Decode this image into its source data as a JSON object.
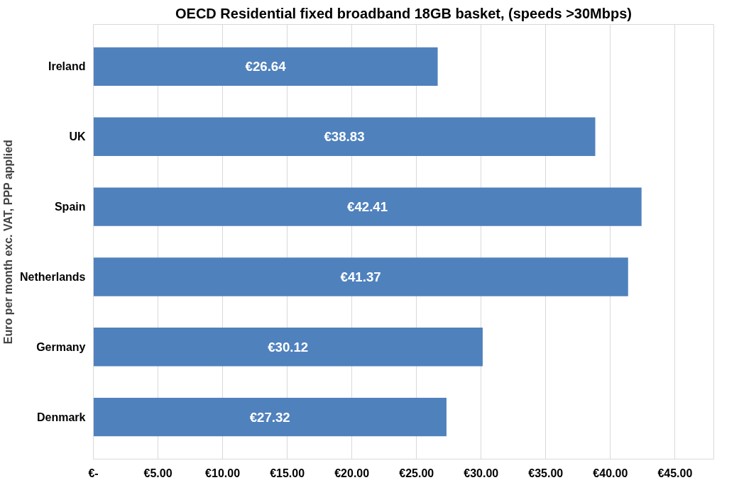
{
  "chart_data": {
    "type": "bar",
    "orientation": "horizontal",
    "title": "OECD Residential fixed broadband 18GB basket, (speeds >30Mbps)",
    "ylabel": "Euro per month exc. VAT, PPP applied",
    "categories": [
      "Ireland",
      "UK",
      "Spain",
      "Netherlands",
      "Germany",
      "Denmark"
    ],
    "values": [
      26.64,
      38.83,
      42.41,
      41.37,
      30.12,
      27.32
    ],
    "value_labels": [
      "€26.64",
      "€38.83",
      "€42.41",
      "€41.37",
      "€30.12",
      "€27.32"
    ],
    "color": "#4f81bd",
    "xlim": [
      0,
      48
    ],
    "xticks": [
      {
        "value": 0,
        "label": "€-"
      },
      {
        "value": 5,
        "label": "€5.00"
      },
      {
        "value": 10,
        "label": "€10.00"
      },
      {
        "value": 15,
        "label": "€15.00"
      },
      {
        "value": 20,
        "label": "€20.00"
      },
      {
        "value": 25,
        "label": "€25.00"
      },
      {
        "value": 30,
        "label": "€30.00"
      },
      {
        "value": 35,
        "label": "€35.00"
      },
      {
        "value": 40,
        "label": "€40.00"
      },
      {
        "value": 45,
        "label": "€45.00"
      }
    ],
    "grid": "x"
  }
}
